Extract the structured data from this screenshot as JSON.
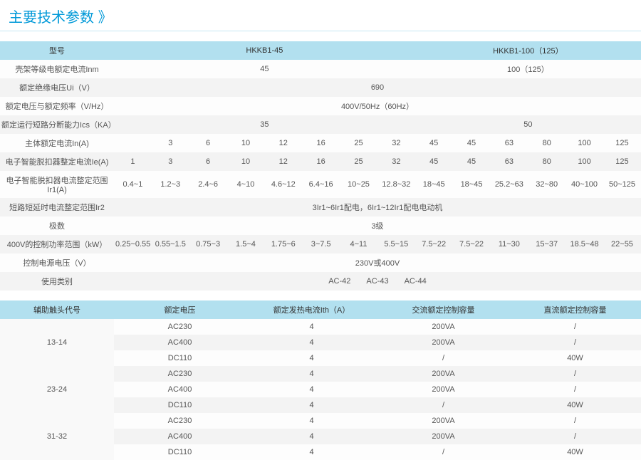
{
  "title": "主要技术参数",
  "table1": {
    "header": {
      "label": "型号",
      "col_a": "HKKB1-45",
      "col_b": "HKKB1-100（125）"
    },
    "rows": [
      {
        "label": "壳架等级电额定电流Inm",
        "type": "split2",
        "a": "45",
        "b": "100（125）"
      },
      {
        "label": "额定绝缘电压Ui（V）",
        "type": "full",
        "val": "690"
      },
      {
        "label": "额定电压与额定频率（V/Hz）",
        "type": "full",
        "val": "400V/50Hz（60Hz）"
      },
      {
        "label": "额定运行短路分断能力Ics（KA）",
        "type": "split2",
        "a": "35",
        "b": "50"
      },
      {
        "label": "主体额定电流In(A)",
        "type": "cells13",
        "c": [
          "3",
          "6",
          "10",
          "12",
          "16",
          "25",
          "32",
          "45",
          "45",
          "63",
          "80",
          "100",
          "125"
        ]
      },
      {
        "label": "电子智能脱扣器整定电流Ie(A)",
        "type": "cells13",
        "c": [
          "1",
          "3",
          "6",
          "10",
          "12",
          "16",
          "25",
          "32",
          "45",
          "45",
          "63",
          "80",
          "100",
          "125"
        ],
        "shift": true
      },
      {
        "label": "电子智能脱扣器电流整定范围Ir1(A)",
        "type": "cells13",
        "c": [
          "0.4~1",
          "1.2~3",
          "2.4~6",
          "4~10",
          "4.6~12",
          "6.4~16",
          "10~25",
          "12.8~32",
          "18~45",
          "18~45",
          "25.2~63",
          "32~80",
          "40~100",
          "50~125"
        ],
        "shift": true
      },
      {
        "label": "短路短延时电流整定范围Ir2",
        "type": "full",
        "val": "3Ir1~6Ir1配电，6Ir1~12Ir1配电电动机"
      },
      {
        "label": "极数",
        "type": "full",
        "val": "3级"
      },
      {
        "label": "400V的控制功率范围（kW）",
        "type": "cells13",
        "c": [
          "0.25~0.55",
          "0.55~1.5",
          "0.75~3",
          "1.5~4",
          "1.75~6",
          "3~7.5",
          "4~11",
          "5.5~15",
          "7.5~22",
          "7.5~22",
          "11~30",
          "15~37",
          "18.5~48",
          "22~55"
        ],
        "shift": true
      },
      {
        "label": "控制电源电压（V）",
        "type": "full",
        "val": "230V或400V"
      },
      {
        "label": "使用类别",
        "type": "full",
        "val": "AC-42  AC-43  AC-44"
      }
    ]
  },
  "table2": {
    "headers": [
      "辅助触头代号",
      "额定电压",
      "额定发热电流Ith（A）",
      "交流额定控制容量",
      "直流额定控制容量"
    ],
    "groups": [
      {
        "code": "13-14",
        "rows": [
          [
            "AC230",
            "4",
            "200VA",
            "/"
          ],
          [
            "AC400",
            "4",
            "200VA",
            "/"
          ],
          [
            "DC110",
            "4",
            "/",
            "40W"
          ]
        ]
      },
      {
        "code": "23-24",
        "rows": [
          [
            "AC230",
            "4",
            "200VA",
            "/"
          ],
          [
            "AC400",
            "4",
            "200VA",
            "/"
          ],
          [
            "DC110",
            "4",
            "/",
            "40W"
          ]
        ]
      },
      {
        "code": "31-32",
        "rows": [
          [
            "AC230",
            "4",
            "200VA",
            "/"
          ],
          [
            "AC400",
            "4",
            "200VA",
            "/"
          ],
          [
            "DC110",
            "4",
            "/",
            "40W"
          ]
        ]
      }
    ]
  }
}
